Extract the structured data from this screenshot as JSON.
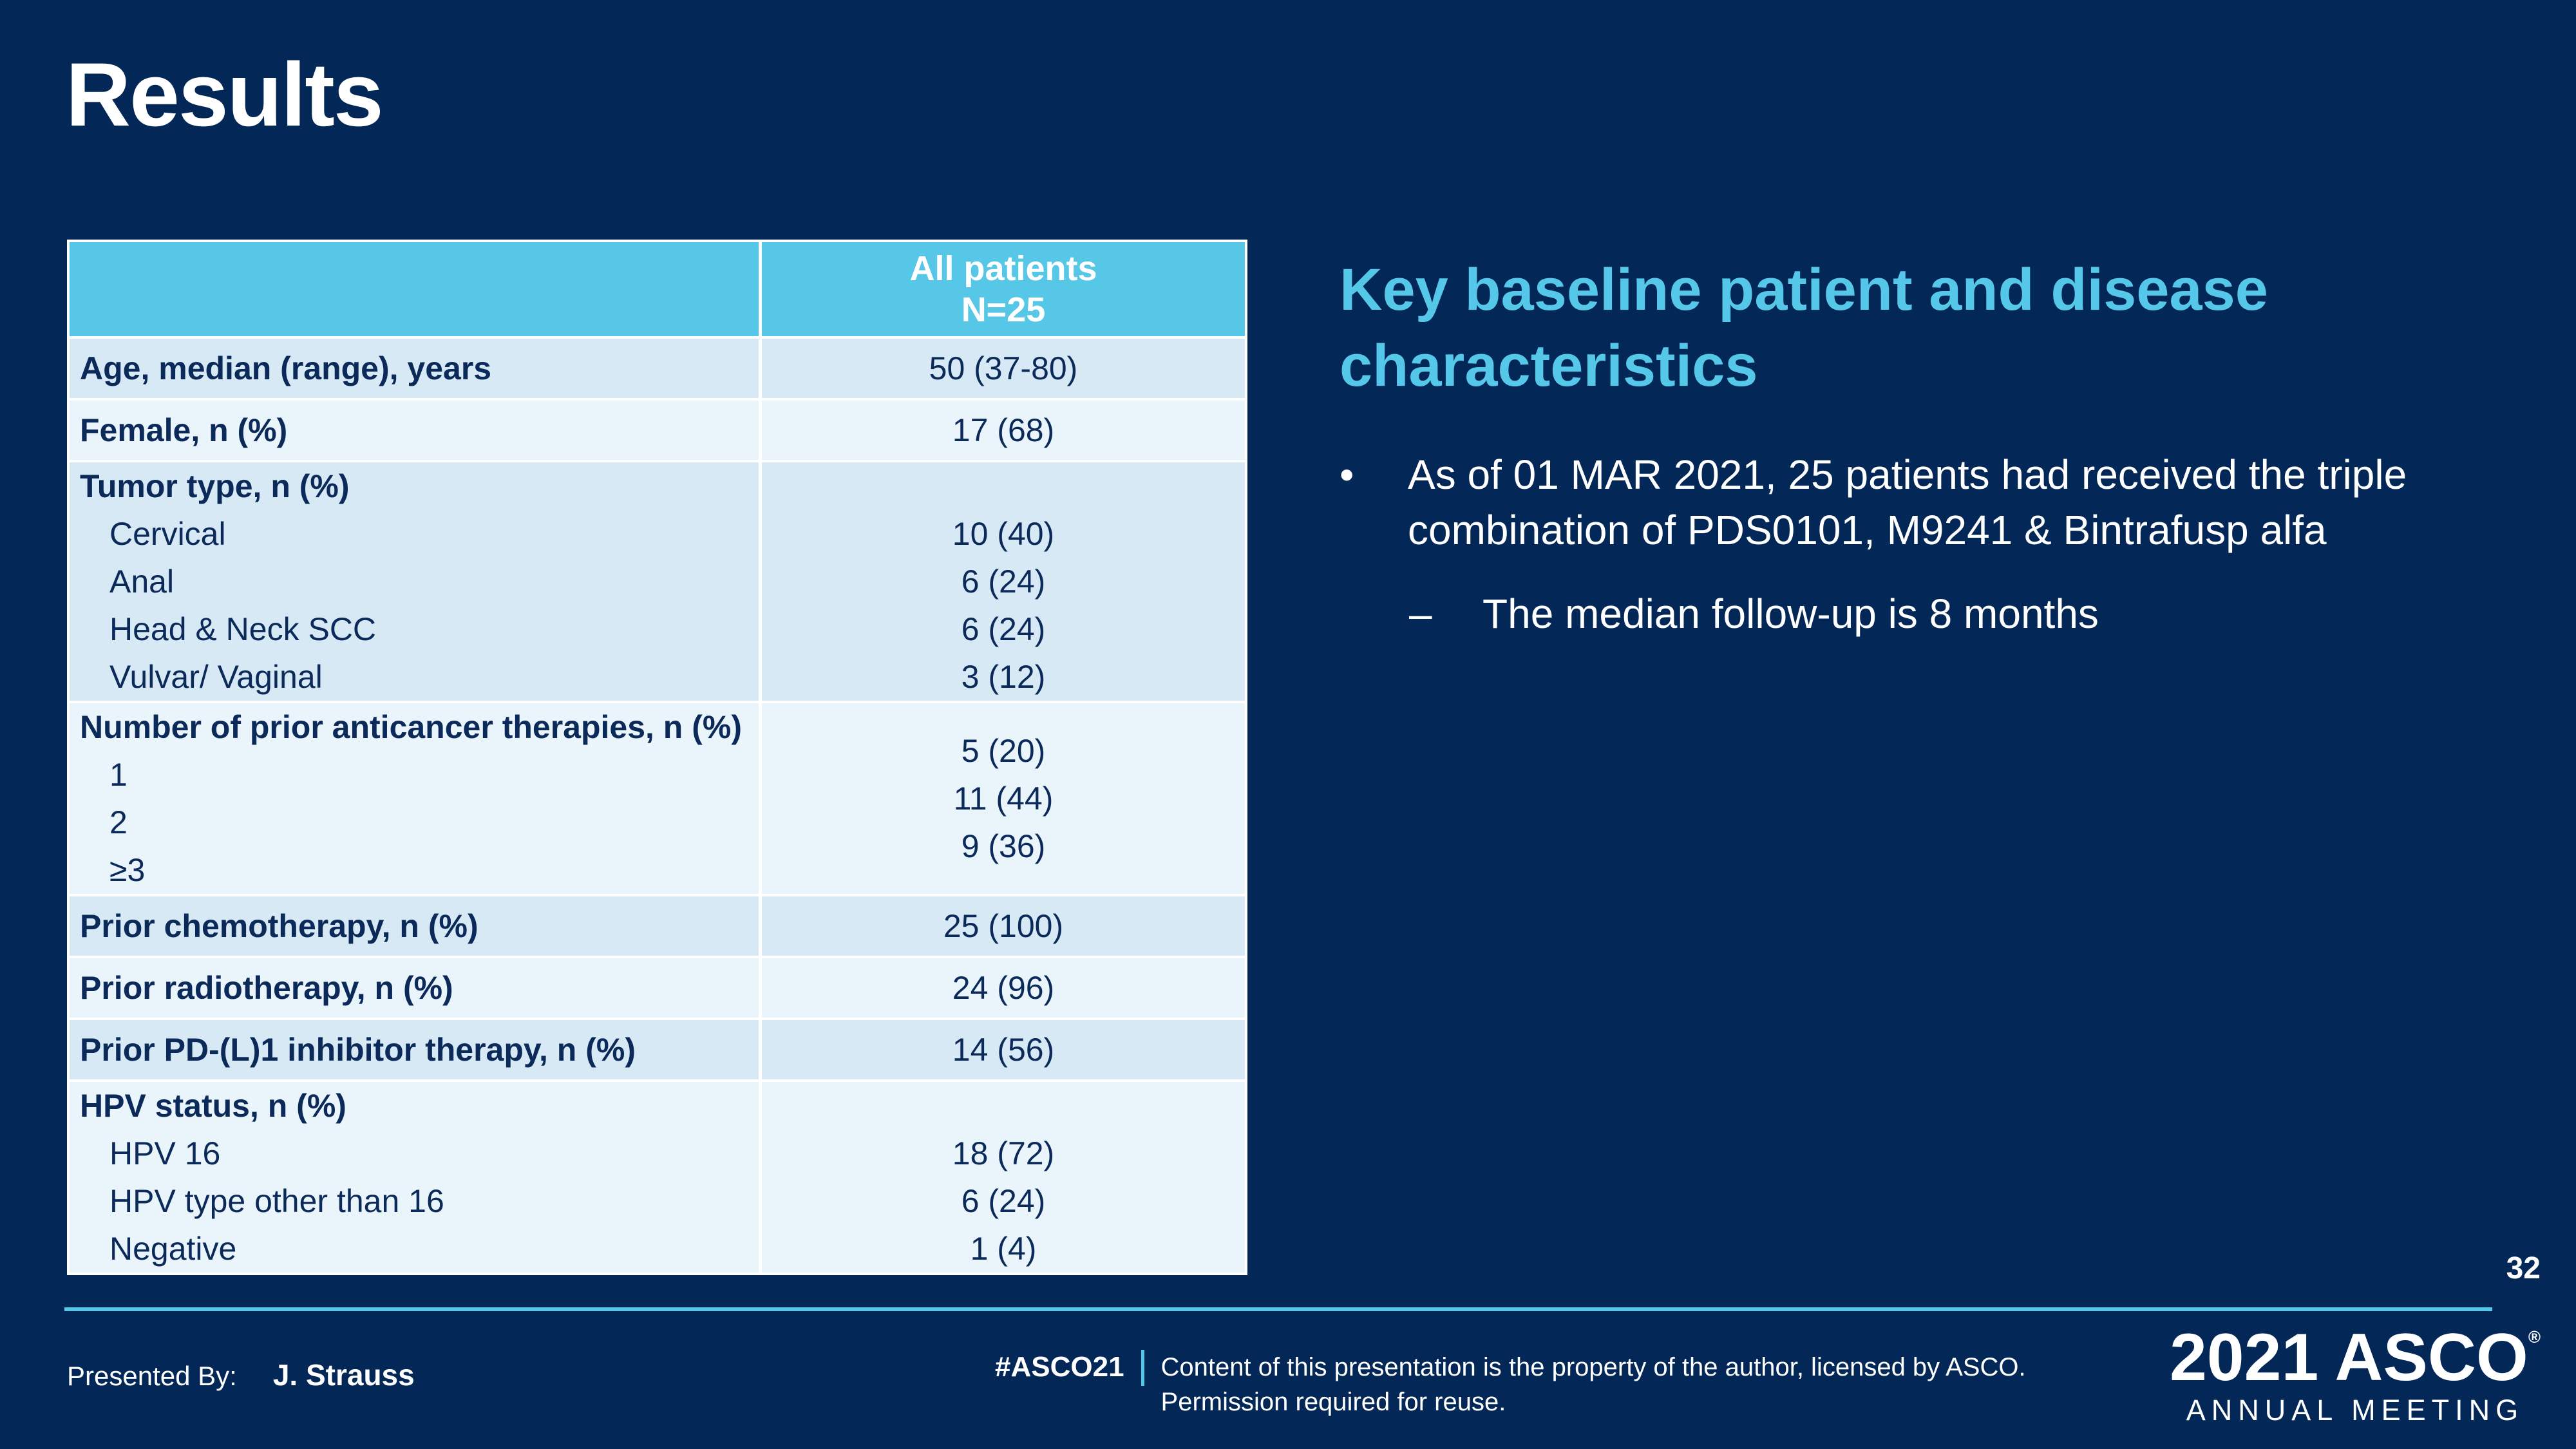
{
  "slide": {
    "title": "Results",
    "page_number": "32"
  },
  "colors": {
    "background": "#032757",
    "accent_cyan": "#55C7E9",
    "table_header_bg": "#57C7E7",
    "table_row_dark": "#D7E9F5",
    "table_row_light": "#EAF4FB",
    "table_text": "#0B2A5A",
    "text_white": "#FFFFFF"
  },
  "table": {
    "header": {
      "col1_label": "",
      "col2_lines": [
        "All patients",
        "N=25"
      ]
    },
    "rows": [
      {
        "type": "simple",
        "shade": "dark",
        "label": "Age, median (range), years",
        "value": "50 (37-80)"
      },
      {
        "type": "simple",
        "shade": "light",
        "label": "Female, n (%)",
        "value": "17 (68)"
      },
      {
        "type": "group",
        "shade": "dark",
        "valign": "items",
        "heading": "Tumor type, n (%)",
        "items": [
          {
            "label": "Cervical",
            "value": "10 (40)"
          },
          {
            "label": "Anal",
            "value": "6 (24)"
          },
          {
            "label": "Head & Neck SCC",
            "value": "6 (24)"
          },
          {
            "label": "Vulvar/ Vaginal",
            "value": "3 (12)"
          }
        ]
      },
      {
        "type": "group",
        "shade": "light",
        "valign": "center",
        "heading": "Number of prior anticancer therapies, n (%)",
        "items": [
          {
            "label": "1",
            "value": "5 (20)"
          },
          {
            "label": "2",
            "value": "11 (44)"
          },
          {
            "label": "≥3",
            "value": "9 (36)"
          }
        ]
      },
      {
        "type": "simple",
        "shade": "dark",
        "label": "Prior chemotherapy, n (%)",
        "value": "25 (100)"
      },
      {
        "type": "simple",
        "shade": "light",
        "label": "Prior radiotherapy, n (%)",
        "value": "24 (96)"
      },
      {
        "type": "simple",
        "shade": "dark",
        "label": "Prior PD-(L)1 inhibitor therapy, n (%)",
        "value": "14 (56)"
      },
      {
        "type": "group",
        "shade": "light",
        "valign": "items",
        "heading": "HPV status, n (%)",
        "items": [
          {
            "label": "HPV 16",
            "value": "18 (72)"
          },
          {
            "label": "HPV type other than 16",
            "value": "6 (24)"
          },
          {
            "label": "Negative",
            "value": "1 (4)"
          }
        ]
      }
    ]
  },
  "panel": {
    "heading": "Key baseline patient and disease characteristics",
    "bullets": [
      {
        "level": 1,
        "marker": "•",
        "text": "As of 01 MAR 2021, 25 patients had received the triple combination of PDS0101, M9241 & Bintrafusp alfa"
      },
      {
        "level": 2,
        "marker": "–",
        "text": "The median follow-up is 8 months"
      }
    ]
  },
  "footer": {
    "presented_by_label": "Presented By:",
    "presenter_name": "J. Strauss",
    "hashtag": "#ASCO21",
    "license_lines": [
      "Content of this presentation is the property of the author, licensed by ASCO.",
      "Permission required for reuse."
    ],
    "logo_year": "2021",
    "logo_name": "ASCO",
    "logo_reg": "®",
    "logo_subtitle": "ANNUAL MEETING"
  }
}
